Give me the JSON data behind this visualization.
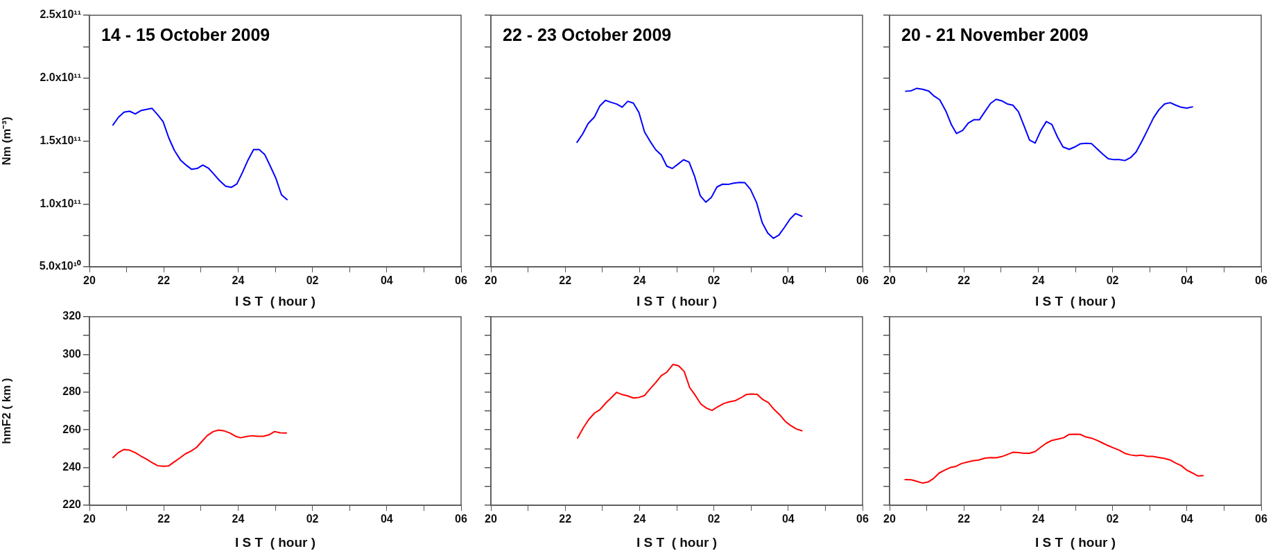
{
  "chart_data": [
    {
      "type": "line",
      "title": "14 - 15 October 2009",
      "xlabel": "I S T  ( hour )",
      "ylabel": "Nm (m⁻³)",
      "color": "#0000ff",
      "marker": "none",
      "line_style": "solid",
      "x": [
        "2009-10-14T20:38",
        "2009-10-14T20:47",
        "2009-10-14T20:56",
        "2009-10-14T21:05",
        "2009-10-14T21:14",
        "2009-10-14T21:23",
        "2009-10-14T21:41",
        "2009-10-14T21:50",
        "2009-10-14T21:59",
        "2009-10-14T22:08",
        "2009-10-14T22:17",
        "2009-10-14T22:27",
        "2009-10-14T22:36",
        "2009-10-14T22:45",
        "2009-10-14T22:54",
        "2009-10-14T23:03",
        "2009-10-14T23:12",
        "2009-10-14T23:21",
        "2009-10-14T23:30",
        "2009-10-14T23:40",
        "2009-10-14T23:49",
        "2009-10-14T23:58",
        "2009-10-15T00:07",
        "2009-10-15T00:16",
        "2009-10-15T00:25",
        "2009-10-15T00:34",
        "2009-10-15T00:43",
        "2009-10-15T00:52",
        "2009-10-15T01:01",
        "2009-10-15T01:10",
        "2009-10-15T01:19"
      ],
      "values": [
        162700000000.0,
        169000000000.0,
        173000000000.0,
        173700000000.0,
        171500000000.0,
        174200000000.0,
        176000000000.0,
        171000000000.0,
        165400000000.0,
        152600000000.0,
        142700000000.0,
        134900000000.0,
        130900000000.0,
        127500000000.0,
        128200000000.0,
        130900000000.0,
        128500000000.0,
        123600000000.0,
        118600000000.0,
        114000000000.0,
        113200000000.0,
        115900000000.0,
        125000000000.0,
        134900000000.0,
        143200000000.0,
        143200000000.0,
        139300000000.0,
        130000000000.0,
        120400000000.0,
        107300000000.0,
        103400000000.0
      ],
      "xlim": [
        "2009-10-14T20:00",
        "2009-10-15T06:00"
      ],
      "xticks": [
        {
          "value": "2009-10-14T20:00",
          "label": "20"
        },
        {
          "value": "2009-10-14T21:00",
          "label": null
        },
        {
          "value": "2009-10-14T22:00",
          "label": "22"
        },
        {
          "value": "2009-10-14T23:00",
          "label": null
        },
        {
          "value": "2009-10-15T00:00",
          "label": "24"
        },
        {
          "value": "2009-10-15T01:00",
          "label": null
        },
        {
          "value": "2009-10-15T02:00",
          "label": "02"
        },
        {
          "value": "2009-10-15T03:00",
          "label": null
        },
        {
          "value": "2009-10-15T04:00",
          "label": "04"
        },
        {
          "value": "2009-10-15T05:00",
          "label": null
        },
        {
          "value": "2009-10-15T06:00",
          "label": "06"
        }
      ],
      "ylim": [
        50000000000.0,
        250000000000.0
      ],
      "yticks": [
        {
          "value": 50000000000.0,
          "label": "5.0x10¹⁰"
        },
        {
          "value": 75000000000.0,
          "label": null
        },
        {
          "value": 100000000000.0,
          "label": "1.0x10¹¹"
        },
        {
          "value": 125000000000.0,
          "label": null
        },
        {
          "value": 150000000000.0,
          "label": "1.5x10¹¹"
        },
        {
          "value": 175000000000.0,
          "label": null
        },
        {
          "value": 200000000000.0,
          "label": "2.0x10¹¹"
        },
        {
          "value": 225000000000.0,
          "label": null
        },
        {
          "value": 250000000000.0,
          "label": "2.5x10¹¹"
        }
      ]
    },
    {
      "type": "line",
      "title": "22 - 23 October 2009",
      "xlabel": "I S T  ( hour )",
      "color": "#0000ff",
      "marker": "none",
      "line_style": "solid",
      "tick_labels": "x",
      "x": [
        "2009-10-22T22:19",
        "2009-10-22T22:28",
        "2009-10-22T22:37",
        "2009-10-22T22:47",
        "2009-10-22T22:56",
        "2009-10-22T23:05",
        "2009-10-22T23:14",
        "2009-10-22T23:23",
        "2009-10-22T23:32",
        "2009-10-22T23:41",
        "2009-10-22T23:50",
        "2009-10-22T23:59",
        "2009-10-23T00:08",
        "2009-10-23T00:17",
        "2009-10-23T00:26",
        "2009-10-23T00:35",
        "2009-10-23T00:44",
        "2009-10-23T00:53",
        "2009-10-23T01:02",
        "2009-10-23T01:11",
        "2009-10-23T01:20",
        "2009-10-23T01:29",
        "2009-10-23T01:38",
        "2009-10-23T01:47",
        "2009-10-23T01:56",
        "2009-10-23T02:05",
        "2009-10-23T02:14",
        "2009-10-23T02:23",
        "2009-10-23T02:32",
        "2009-10-23T02:41",
        "2009-10-23T02:50",
        "2009-10-23T02:59",
        "2009-10-23T03:09",
        "2009-10-23T03:18",
        "2009-10-23T03:27",
        "2009-10-23T03:36",
        "2009-10-23T03:45",
        "2009-10-23T03:54",
        "2009-10-23T04:03",
        "2009-10-23T04:12",
        "2009-10-23T04:22"
      ],
      "values": [
        149000000000.0,
        155500000000.0,
        163900000000.0,
        169000000000.0,
        178000000000.0,
        182400000000.0,
        180800000000.0,
        179400000000.0,
        176900000000.0,
        181600000000.0,
        180200000000.0,
        172700000000.0,
        157300000000.0,
        149800000000.0,
        143100000000.0,
        139000000000.0,
        130000000000.0,
        128200000000.0,
        131600000000.0,
        135100000000.0,
        133300000000.0,
        121800000000.0,
        106500000000.0,
        101400000000.0,
        105300000000.0,
        113500000000.0,
        115700000000.0,
        115500000000.0,
        116500000000.0,
        117100000000.0,
        116900000000.0,
        111600000000.0,
        101000000000.0,
        85100000000.0,
        76900000000.0,
        72700000000.0,
        75300000000.0,
        81400000000.0,
        88000000000.0,
        92400000000.0,
        90200000000.0
      ],
      "xlim": [
        "2009-10-22T20:00",
        "2009-10-23T06:00"
      ],
      "xticks": [
        {
          "value": "2009-10-22T20:00",
          "label": "20"
        },
        {
          "value": "2009-10-22T21:00",
          "label": null
        },
        {
          "value": "2009-10-22T22:00",
          "label": "22"
        },
        {
          "value": "2009-10-22T23:00",
          "label": null
        },
        {
          "value": "2009-10-23T00:00",
          "label": "24"
        },
        {
          "value": "2009-10-23T01:00",
          "label": null
        },
        {
          "value": "2009-10-23T02:00",
          "label": "02"
        },
        {
          "value": "2009-10-23T03:00",
          "label": null
        },
        {
          "value": "2009-10-23T04:00",
          "label": "04"
        },
        {
          "value": "2009-10-23T05:00",
          "label": null
        },
        {
          "value": "2009-10-23T06:00",
          "label": "06"
        }
      ],
      "ylim": [
        50000000000.0,
        250000000000.0
      ],
      "yticks": [
        {
          "value": 50000000000.0,
          "label": null
        },
        {
          "value": 75000000000.0,
          "label": null
        },
        {
          "value": 100000000000.0,
          "label": null
        },
        {
          "value": 125000000000.0,
          "label": null
        },
        {
          "value": 150000000000.0,
          "label": null
        },
        {
          "value": 175000000000.0,
          "label": null
        },
        {
          "value": 200000000000.0,
          "label": null
        },
        {
          "value": 225000000000.0,
          "label": null
        },
        {
          "value": 250000000000.0,
          "label": null
        }
      ]
    },
    {
      "type": "line",
      "title": "20 - 21 November 2009",
      "xlabel": "I S T  ( hour )",
      "color": "#0000ff",
      "marker": "none",
      "line_style": "solid",
      "tick_labels": "x",
      "x": [
        "2009-11-20T20:26",
        "2009-11-20T20:35",
        "2009-11-20T20:44",
        "2009-11-20T20:53",
        "2009-11-20T21:03",
        "2009-11-20T21:12",
        "2009-11-20T21:21",
        "2009-11-20T21:31",
        "2009-11-20T21:40",
        "2009-11-20T21:48",
        "2009-11-20T21:58",
        "2009-11-20T22:07",
        "2009-11-20T22:16",
        "2009-11-20T22:25",
        "2009-11-20T22:34",
        "2009-11-20T22:43",
        "2009-11-20T22:52",
        "2009-11-20T23:01",
        "2009-11-20T23:10",
        "2009-11-20T23:19",
        "2009-11-20T23:28",
        "2009-11-20T23:37",
        "2009-11-20T23:46",
        "2009-11-20T23:55",
        "2009-11-21T00:04",
        "2009-11-21T00:13",
        "2009-11-21T00:22",
        "2009-11-21T00:31",
        "2009-11-21T00:40",
        "2009-11-21T00:50",
        "2009-11-21T00:59",
        "2009-11-21T01:08",
        "2009-11-21T01:17",
        "2009-11-21T01:26",
        "2009-11-21T01:35",
        "2009-11-21T01:44",
        "2009-11-21T01:53",
        "2009-11-21T02:02",
        "2009-11-21T02:11",
        "2009-11-21T02:20",
        "2009-11-21T02:29",
        "2009-11-21T02:38",
        "2009-11-21T02:48",
        "2009-11-21T02:57",
        "2009-11-21T03:06",
        "2009-11-21T03:15",
        "2009-11-21T03:24",
        "2009-11-21T03:33",
        "2009-11-21T03:42",
        "2009-11-21T03:51",
        "2009-11-21T04:00",
        "2009-11-21T04:09"
      ],
      "values": [
        189600000000.0,
        190000000000.0,
        191900000000.0,
        191200000000.0,
        189800000000.0,
        185700000000.0,
        182800000000.0,
        173700000000.0,
        162800000000.0,
        156000000000.0,
        158500000000.0,
        164200000000.0,
        166900000000.0,
        166900000000.0,
        173500000000.0,
        179900000000.0,
        183200000000.0,
        182000000000.0,
        179500000000.0,
        178500000000.0,
        173300000000.0,
        162200000000.0,
        150800000000.0,
        148400000000.0,
        158100000000.0,
        165500000000.0,
        163200000000.0,
        153300000000.0,
        145300000000.0,
        143400000000.0,
        145300000000.0,
        147800000000.0,
        148200000000.0,
        148000000000.0,
        143800000000.0,
        139700000000.0,
        136000000000.0,
        135200000000.0,
        135200000000.0,
        134500000000.0,
        136800000000.0,
        141300000000.0,
        150400000000.0,
        159300000000.0,
        168400000000.0,
        175000000000.0,
        179500000000.0,
        180500000000.0,
        178500000000.0,
        176800000000.0,
        176200000000.0,
        177200000000.0
      ],
      "xlim": [
        "2009-11-20T20:00",
        "2009-11-21T06:00"
      ],
      "xticks": [
        {
          "value": "2009-11-20T20:00",
          "label": "20"
        },
        {
          "value": "2009-11-20T21:00",
          "label": null
        },
        {
          "value": "2009-11-20T22:00",
          "label": "22"
        },
        {
          "value": "2009-11-20T23:00",
          "label": null
        },
        {
          "value": "2009-11-21T00:00",
          "label": "24"
        },
        {
          "value": "2009-11-21T01:00",
          "label": null
        },
        {
          "value": "2009-11-21T02:00",
          "label": "02"
        },
        {
          "value": "2009-11-21T03:00",
          "label": null
        },
        {
          "value": "2009-11-21T04:00",
          "label": "04"
        },
        {
          "value": "2009-11-21T05:00",
          "label": null
        },
        {
          "value": "2009-11-21T06:00",
          "label": "06"
        }
      ],
      "ylim": [
        50000000000.0,
        250000000000.0
      ],
      "yticks": [
        {
          "value": 50000000000.0,
          "label": null
        },
        {
          "value": 75000000000.0,
          "label": null
        },
        {
          "value": 100000000000.0,
          "label": null
        },
        {
          "value": 125000000000.0,
          "label": null
        },
        {
          "value": 150000000000.0,
          "label": null
        },
        {
          "value": 175000000000.0,
          "label": null
        },
        {
          "value": 200000000000.0,
          "label": null
        },
        {
          "value": 225000000000.0,
          "label": null
        },
        {
          "value": 250000000000.0,
          "label": null
        }
      ]
    },
    {
      "type": "line",
      "xlabel": "I S T  ( hour )",
      "ylabel": "hmF2 ( km )",
      "color": "#ff0000",
      "marker": "none",
      "line_style": "solid",
      "x": [
        "2009-10-14T20:38",
        "2009-10-14T20:46",
        "2009-10-14T20:56",
        "2009-10-14T21:05",
        "2009-10-14T21:14",
        "2009-10-14T21:23",
        "2009-10-14T21:32",
        "2009-10-14T21:40",
        "2009-10-14T21:50",
        "2009-10-14T21:59",
        "2009-10-14T22:08",
        "2009-10-14T22:17",
        "2009-10-14T22:26",
        "2009-10-14T22:35",
        "2009-10-14T22:44",
        "2009-10-14T22:53",
        "2009-10-14T23:02",
        "2009-10-14T23:10",
        "2009-10-14T23:20",
        "2009-10-14T23:29",
        "2009-10-14T23:38",
        "2009-10-14T23:47",
        "2009-10-14T23:56",
        "2009-10-15T00:04",
        "2009-10-15T00:14",
        "2009-10-15T00:23",
        "2009-10-15T00:32",
        "2009-10-15T00:41",
        "2009-10-15T00:50",
        "2009-10-15T00:59",
        "2009-10-15T01:08",
        "2009-10-15T01:18"
      ],
      "values": [
        245.3,
        247.8,
        249.6,
        249.2,
        247.9,
        246.1,
        244.5,
        242.8,
        241.0,
        240.7,
        240.9,
        243.0,
        245.1,
        247.3,
        248.7,
        250.7,
        254.0,
        256.9,
        259.1,
        259.9,
        259.4,
        258.3,
        256.6,
        255.8,
        256.5,
        256.9,
        256.6,
        256.6,
        257.4,
        259.1,
        258.4,
        258.3
      ],
      "xlim": [
        "2009-10-14T20:00",
        "2009-10-15T06:00"
      ],
      "xticks": [
        {
          "value": "2009-10-14T20:00",
          "label": "20"
        },
        {
          "value": "2009-10-14T21:00",
          "label": null
        },
        {
          "value": "2009-10-14T22:00",
          "label": "22"
        },
        {
          "value": "2009-10-14T23:00",
          "label": null
        },
        {
          "value": "2009-10-15T00:00",
          "label": "24"
        },
        {
          "value": "2009-10-15T01:00",
          "label": null
        },
        {
          "value": "2009-10-15T02:00",
          "label": "02"
        },
        {
          "value": "2009-10-15T03:00",
          "label": null
        },
        {
          "value": "2009-10-15T04:00",
          "label": "04"
        },
        {
          "value": "2009-10-15T05:00",
          "label": null
        },
        {
          "value": "2009-10-15T06:00",
          "label": "06"
        }
      ],
      "ylim": [
        220,
        320
      ],
      "yticks": [
        220,
        {
          "value": 230,
          "label": null
        },
        240,
        {
          "value": 250,
          "label": null
        },
        260,
        {
          "value": 270,
          "label": null
        },
        280,
        {
          "value": 290,
          "label": null
        },
        300,
        {
          "value": 310,
          "label": null
        },
        320
      ]
    },
    {
      "type": "line",
      "xlabel": "I S T  ( hour )",
      "color": "#ff0000",
      "marker": "none",
      "line_style": "solid",
      "tick_labels": "x",
      "x": [
        "2009-10-22T22:20",
        "2009-10-22T22:29",
        "2009-10-22T22:38",
        "2009-10-22T22:47",
        "2009-10-22T22:56",
        "2009-10-22T23:06",
        "2009-10-22T23:14",
        "2009-10-22T23:23",
        "2009-10-22T23:32",
        "2009-10-22T23:41",
        "2009-10-22T23:50",
        "2009-10-22T23:59",
        "2009-10-23T00:08",
        "2009-10-23T00:17",
        "2009-10-23T00:26",
        "2009-10-23T00:35",
        "2009-10-23T00:44",
        "2009-10-23T00:54",
        "2009-10-23T01:03",
        "2009-10-23T01:12",
        "2009-10-23T01:21",
        "2009-10-23T01:30",
        "2009-10-23T01:39",
        "2009-10-23T01:48",
        "2009-10-23T01:57",
        "2009-10-23T02:06",
        "2009-10-23T02:16",
        "2009-10-23T02:25",
        "2009-10-23T02:34",
        "2009-10-23T02:43",
        "2009-10-23T02:52",
        "2009-10-23T03:01",
        "2009-10-23T03:10",
        "2009-10-23T03:19",
        "2009-10-23T03:28",
        "2009-10-23T03:37",
        "2009-10-23T03:46",
        "2009-10-23T03:55",
        "2009-10-23T04:03",
        "2009-10-23T04:13",
        "2009-10-23T04:22"
      ],
      "values": [
        255.7,
        261.0,
        265.5,
        268.8,
        270.7,
        274.4,
        276.9,
        279.9,
        278.7,
        278.0,
        276.9,
        277.2,
        278.2,
        281.7,
        285.0,
        288.7,
        290.6,
        294.7,
        294.0,
        291.0,
        282.4,
        278.3,
        273.7,
        271.5,
        270.3,
        272.2,
        274.0,
        274.9,
        275.4,
        276.9,
        278.7,
        279.0,
        278.8,
        276.1,
        274.5,
        270.9,
        268.1,
        264.6,
        262.5,
        260.5,
        259.5
      ],
      "xlim": [
        "2009-10-22T20:00",
        "2009-10-23T06:00"
      ],
      "xticks": [
        {
          "value": "2009-10-22T20:00",
          "label": "20"
        },
        {
          "value": "2009-10-22T21:00",
          "label": null
        },
        {
          "value": "2009-10-22T22:00",
          "label": "22"
        },
        {
          "value": "2009-10-22T23:00",
          "label": null
        },
        {
          "value": "2009-10-23T00:00",
          "label": "24"
        },
        {
          "value": "2009-10-23T01:00",
          "label": null
        },
        {
          "value": "2009-10-23T02:00",
          "label": "02"
        },
        {
          "value": "2009-10-23T03:00",
          "label": null
        },
        {
          "value": "2009-10-23T04:00",
          "label": "04"
        },
        {
          "value": "2009-10-23T05:00",
          "label": null
        },
        {
          "value": "2009-10-23T06:00",
          "label": "06"
        }
      ],
      "ylim": [
        220,
        320
      ],
      "yticks": [
        {
          "value": 220,
          "label": null
        },
        {
          "value": 230,
          "label": null
        },
        {
          "value": 240,
          "label": null
        },
        {
          "value": 250,
          "label": null
        },
        {
          "value": 260,
          "label": null
        },
        {
          "value": 270,
          "label": null
        },
        {
          "value": 280,
          "label": null
        },
        {
          "value": 290,
          "label": null
        },
        {
          "value": 300,
          "label": null
        },
        {
          "value": 310,
          "label": null
        },
        {
          "value": 320,
          "label": null
        }
      ]
    },
    {
      "type": "line",
      "xlabel": "I S T  ( hour )",
      "color": "#ff0000",
      "marker": "none",
      "line_style": "solid",
      "tick_labels": "x",
      "x": [
        "2009-11-20T20:25",
        "2009-11-20T20:35",
        "2009-11-20T20:44",
        "2009-11-20T20:53",
        "2009-11-20T21:02",
        "2009-11-20T21:11",
        "2009-11-20T21:20",
        "2009-11-20T21:29",
        "2009-11-20T21:38",
        "2009-11-20T21:47",
        "2009-11-20T21:56",
        "2009-11-20T22:06",
        "2009-11-20T22:15",
        "2009-11-20T22:24",
        "2009-11-20T22:34",
        "2009-11-20T22:43",
        "2009-11-20T22:52",
        "2009-11-20T23:01",
        "2009-11-20T23:10",
        "2009-11-20T23:19",
        "2009-11-20T23:28",
        "2009-11-20T23:37",
        "2009-11-20T23:46",
        "2009-11-20T23:55",
        "2009-11-21T00:04",
        "2009-11-21T00:13",
        "2009-11-21T00:22",
        "2009-11-21T00:32",
        "2009-11-21T00:41",
        "2009-11-21T00:50",
        "2009-11-21T00:59",
        "2009-11-21T01:08",
        "2009-11-21T01:17",
        "2009-11-21T01:26",
        "2009-11-21T01:35",
        "2009-11-21T01:44",
        "2009-11-21T01:53",
        "2009-11-21T02:02",
        "2009-11-21T02:11",
        "2009-11-21T02:20",
        "2009-11-21T02:29",
        "2009-11-21T02:38",
        "2009-11-21T02:47",
        "2009-11-21T02:56",
        "2009-11-21T03:05",
        "2009-11-21T03:14",
        "2009-11-21T03:23",
        "2009-11-21T03:33",
        "2009-11-21T03:42",
        "2009-11-21T03:51",
        "2009-11-21T04:00",
        "2009-11-21T04:09",
        "2009-11-21T04:18",
        "2009-11-21T04:26"
      ],
      "values": [
        233.6,
        233.5,
        232.7,
        231.8,
        232.3,
        234.2,
        237.1,
        238.6,
        240.0,
        240.6,
        242.1,
        243.0,
        243.6,
        244.0,
        245.0,
        245.3,
        245.2,
        245.8,
        246.9,
        248.1,
        247.9,
        247.6,
        247.6,
        248.5,
        250.8,
        252.9,
        254.4,
        255.1,
        255.8,
        257.6,
        257.7,
        257.6,
        256.2,
        255.6,
        254.4,
        253.0,
        251.6,
        250.4,
        249.2,
        247.5,
        246.7,
        246.3,
        246.6,
        245.9,
        245.9,
        245.4,
        244.9,
        244.0,
        242.4,
        241.0,
        238.6,
        237.1,
        235.5,
        235.7
      ],
      "xlim": [
        "2009-11-20T20:00",
        "2009-11-21T06:00"
      ],
      "xticks": [
        {
          "value": "2009-11-20T20:00",
          "label": "20"
        },
        {
          "value": "2009-11-20T21:00",
          "label": null
        },
        {
          "value": "2009-11-20T22:00",
          "label": "22"
        },
        {
          "value": "2009-11-20T23:00",
          "label": null
        },
        {
          "value": "2009-11-21T00:00",
          "label": "24"
        },
        {
          "value": "2009-11-21T01:00",
          "label": null
        },
        {
          "value": "2009-11-21T02:00",
          "label": "02"
        },
        {
          "value": "2009-11-21T03:00",
          "label": null
        },
        {
          "value": "2009-11-21T04:00",
          "label": "04"
        },
        {
          "value": "2009-11-21T05:00",
          "label": null
        },
        {
          "value": "2009-11-21T06:00",
          "label": "06"
        }
      ],
      "ylim": [
        220,
        320
      ],
      "yticks": [
        {
          "value": 220,
          "label": null
        },
        {
          "value": 230,
          "label": null
        },
        {
          "value": 240,
          "label": null
        },
        {
          "value": 250,
          "label": null
        },
        {
          "value": 260,
          "label": null
        },
        {
          "value": 270,
          "label": null
        },
        {
          "value": 280,
          "label": null
        },
        {
          "value": 290,
          "label": null
        },
        {
          "value": 300,
          "label": null
        },
        {
          "value": 310,
          "label": null
        },
        {
          "value": 320,
          "label": null
        }
      ]
    }
  ]
}
